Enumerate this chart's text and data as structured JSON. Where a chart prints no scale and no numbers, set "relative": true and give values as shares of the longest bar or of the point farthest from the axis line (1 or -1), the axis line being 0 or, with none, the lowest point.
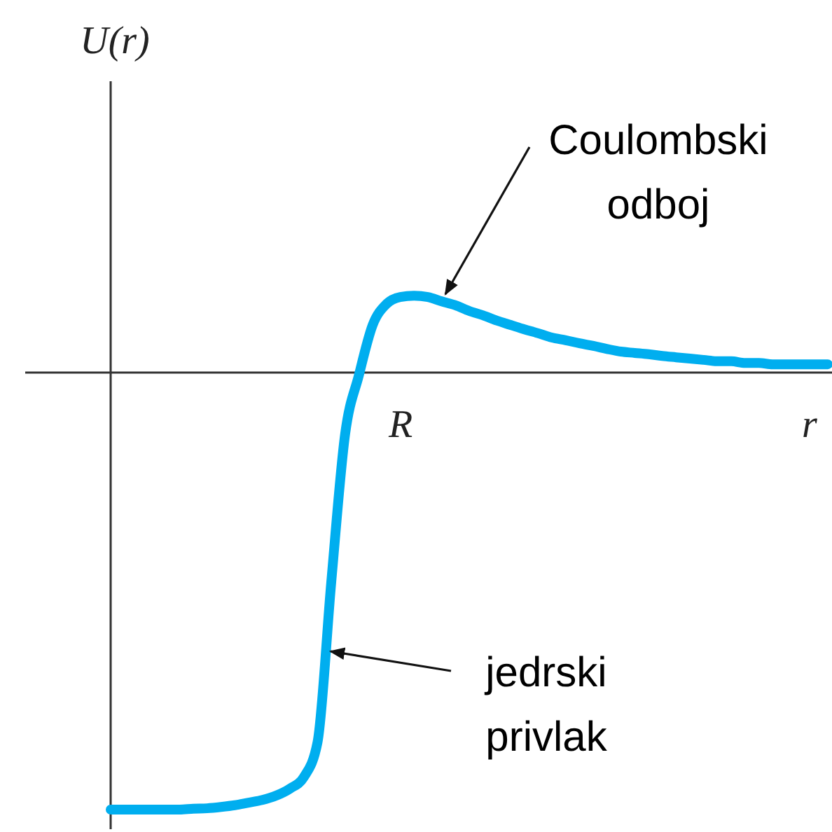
{
  "chart_data": {
    "type": "line",
    "relative": true,
    "xlabel": "r",
    "categories": [
      null,
      null,
      null,
      null,
      null,
      null,
      null,
      null,
      null,
      null,
      null,
      null,
      null,
      null,
      null,
      null,
      null,
      null,
      null,
      null,
      null,
      null,
      null,
      null,
      null,
      null,
      null,
      null,
      null,
      null,
      null,
      null,
      null,
      null,
      null,
      null,
      null,
      null,
      null,
      null,
      null,
      null,
      null,
      null,
      null,
      null,
      null,
      null,
      null,
      null,
      null,
      null,
      null
    ],
    "series": [
      {
        "color": "#00aeef",
        "values": [
          -1,
          -1,
          -1,
          -1,
          -1,
          -1,
          -0.998,
          -0.997,
          -0.994,
          -0.99,
          -0.984,
          -0.978,
          -0.968,
          -0.952,
          -0.926,
          -0.846,
          -0.478,
          -0.141,
          -0.006,
          0.109,
          0.157,
          0.173,
          0.176,
          0.173,
          0.163,
          0.154,
          0.141,
          0.131,
          0.119,
          0.109,
          0.099,
          0.09,
          0.08,
          0.074,
          0.067,
          0.061,
          0.054,
          0.048,
          0.045,
          0.042,
          0.038,
          0.035,
          0.032,
          0.029,
          0.026,
          0.026,
          0.022,
          0.022,
          0.019,
          0.019,
          0.019,
          0.019,
          0.019
        ]
      }
    ],
    "annotations": [
      "Coulombski\nodboj",
      "jedrski\nprivlak",
      "R",
      "U(r)"
    ]
  }
}
